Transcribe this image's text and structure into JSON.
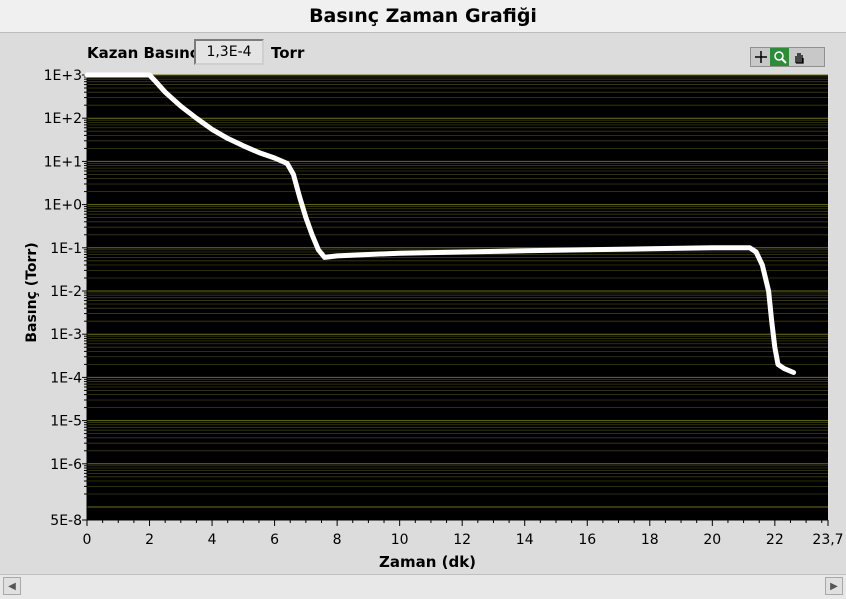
{
  "chart_data": {
    "type": "line",
    "title": "Basınç Zaman Grafiği",
    "xlabel": "Zaman (dk)",
    "ylabel": "Basınç (Torr)",
    "xlim": [
      0,
      23.7
    ],
    "ylim_log": [
      -7.301,
      3
    ],
    "y_scale": "log",
    "x_ticks": [
      "0",
      "2",
      "4",
      "6",
      "8",
      "10",
      "12",
      "14",
      "16",
      "18",
      "20",
      "22",
      "23,7"
    ],
    "y_ticks": [
      "1E+3",
      "1E+2",
      "1E+1",
      "1E+0",
      "1E-1",
      "1E-2",
      "1E-3",
      "1E-4",
      "1E-5",
      "1E-6",
      "5E-8"
    ],
    "background": "#000000",
    "grid_color": "#5c5c1c",
    "line_color": "#ffffff",
    "series": [
      {
        "x": [
          0,
          0.5,
          1,
          1.5,
          2,
          2.2,
          2.5,
          3,
          3.5,
          4,
          4.5,
          5,
          5.5,
          6,
          6.4,
          6.6,
          6.8,
          7,
          7.2,
          7.4,
          7.6,
          8,
          9,
          10,
          12,
          14,
          16,
          18,
          20,
          21.2,
          21.4,
          21.6,
          21.8,
          21.9,
          22,
          22.1,
          22.3,
          22.6
        ],
        "y": [
          1000,
          1000,
          1000,
          1000,
          1000,
          700,
          400,
          190,
          100,
          55,
          34,
          23,
          16,
          12,
          9,
          5,
          1.5,
          0.5,
          0.2,
          0.09,
          0.06,
          0.065,
          0.07,
          0.075,
          0.08,
          0.085,
          0.09,
          0.095,
          0.1,
          0.1,
          0.08,
          0.04,
          0.01,
          0.002,
          0.0005,
          0.0002,
          0.00016,
          0.00013
        ]
      }
    ]
  },
  "indicator": {
    "label": "Kazan Basıncı",
    "value": "1,3E-4",
    "unit": "Torr"
  },
  "palette": {
    "tools": [
      "crosshair-icon",
      "zoom-icon",
      "pan-icon"
    ]
  }
}
